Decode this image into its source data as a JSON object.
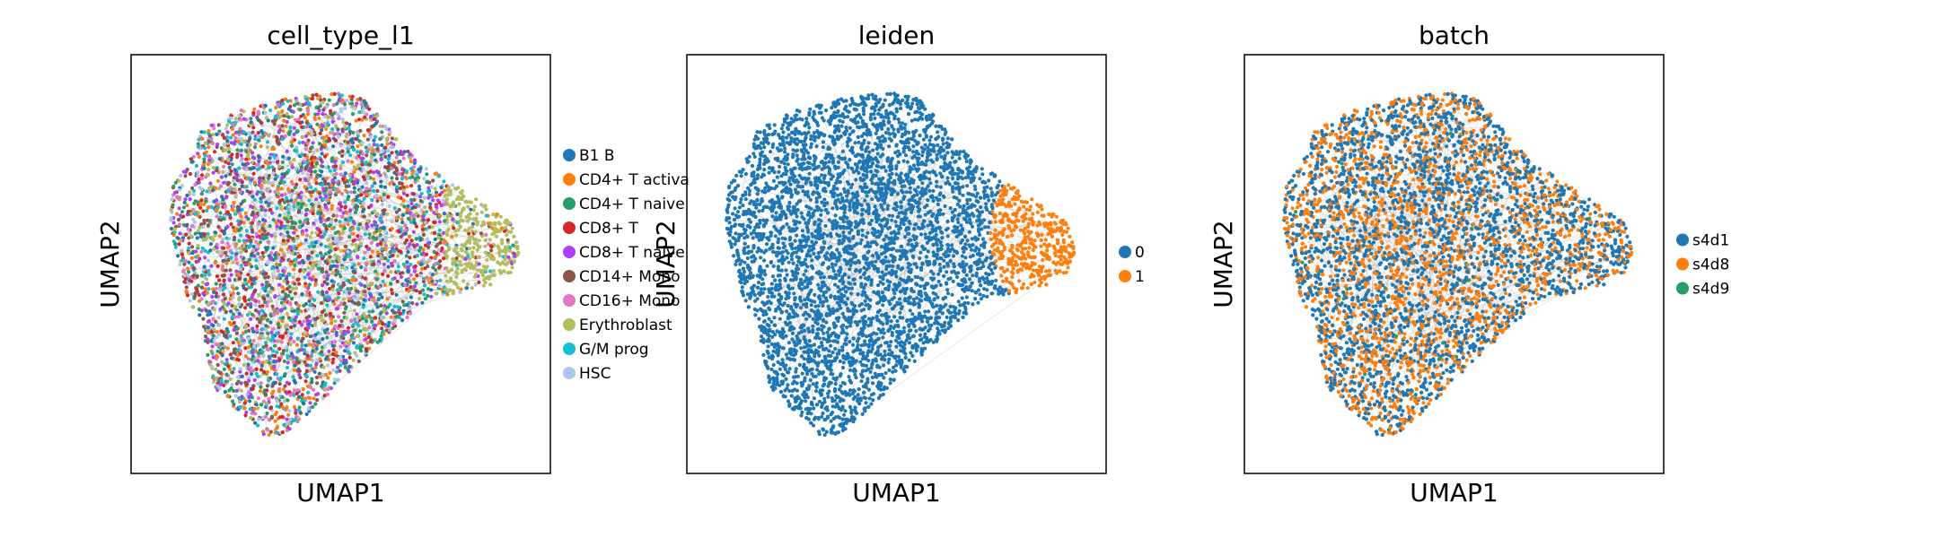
{
  "chart_data": [
    {
      "type": "scatter",
      "title": "cell_type_l1",
      "xlabel": "UMAP1",
      "ylabel": "UMAP2",
      "grid": false,
      "ticks": "hidden",
      "legend_position": "right",
      "categories": [
        {
          "label": "B1 B",
          "color": "#1f77b4"
        },
        {
          "label": "CD4+ T activa",
          "color": "#ff7f0e"
        },
        {
          "label": "CD4+ T naive",
          "color": "#279e68"
        },
        {
          "label": "CD8+ T",
          "color": "#d62728"
        },
        {
          "label": "CD8+ T naive",
          "color": "#aa40fc"
        },
        {
          "label": "CD14+ Mono",
          "color": "#8c564b"
        },
        {
          "label": "CD16+ Mono",
          "color": "#e377c2"
        },
        {
          "label": "Erythroblast",
          "color": "#b5bd61"
        },
        {
          "label": "G/M prog",
          "color": "#17becf"
        },
        {
          "label": "HSC",
          "color": "#aec7e8"
        }
      ]
    },
    {
      "type": "scatter",
      "title": "leiden",
      "xlabel": "UMAP1",
      "ylabel": "UMAP2",
      "grid": false,
      "ticks": "hidden",
      "legend_position": "right",
      "categories": [
        {
          "label": "0",
          "color": "#1f77b4"
        },
        {
          "label": "1",
          "color": "#ff7f0e"
        }
      ]
    },
    {
      "type": "scatter",
      "title": "batch",
      "xlabel": "UMAP1",
      "ylabel": "UMAP2",
      "grid": false,
      "ticks": "hidden",
      "legend_position": "right",
      "categories": [
        {
          "label": "s4d1",
          "color": "#1f77b4"
        },
        {
          "label": "s4d8",
          "color": "#ff7f0e"
        },
        {
          "label": "s4d9",
          "color": "#279e68"
        }
      ]
    }
  ]
}
